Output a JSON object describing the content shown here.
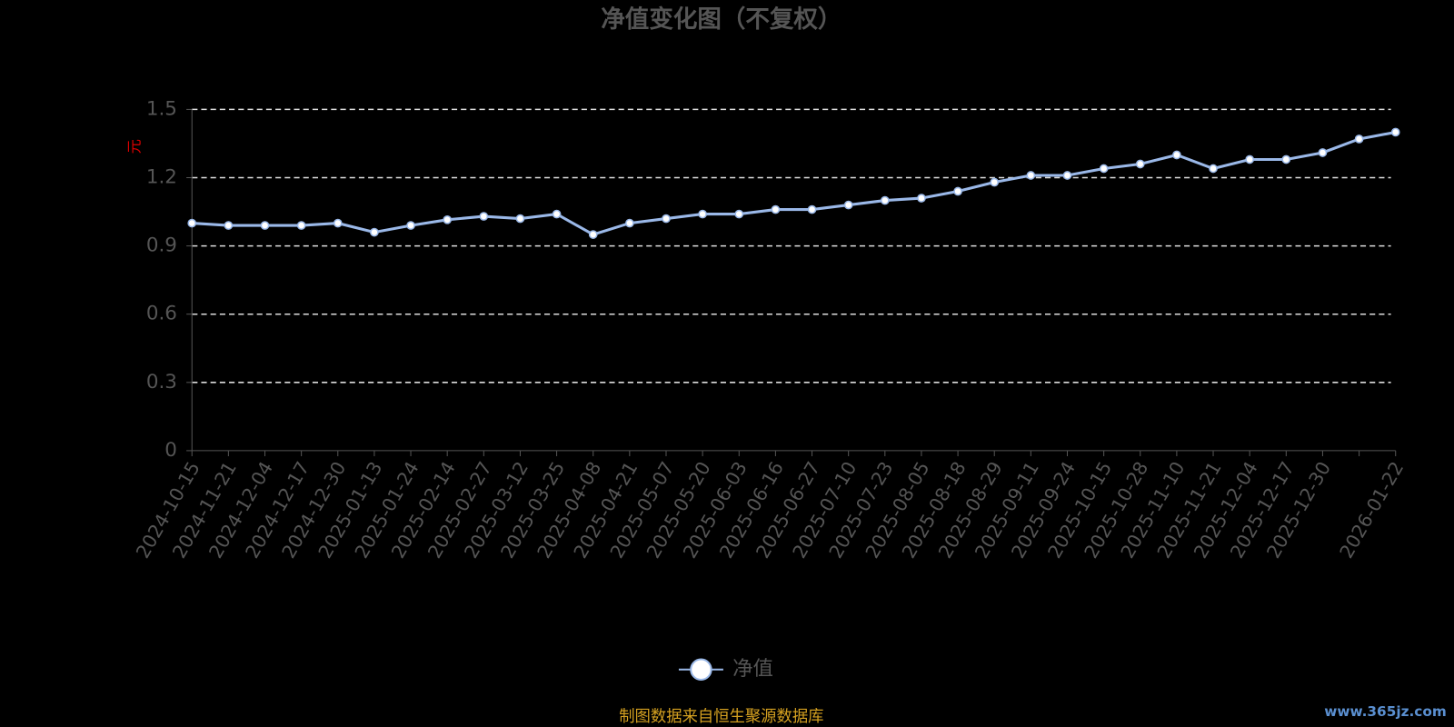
{
  "chart_data": {
    "type": "line",
    "title": "净值变化图（不复权）",
    "y_label": "元",
    "categories": [
      "2024-10-15",
      "2024-11-21",
      "2024-12-04",
      "2024-12-17",
      "2024-12-30",
      "2025-01-13",
      "2025-01-24",
      "2025-02-14",
      "2025-02-27",
      "2025-03-12",
      "2025-03-25",
      "2025-04-08",
      "2025-04-21",
      "2025-05-07",
      "2025-05-20",
      "2025-06-03",
      "2025-06-16",
      "2025-06-27",
      "2025-07-10",
      "2025-07-23",
      "2025-08-05",
      "2025-08-18",
      "2025-08-29",
      "2025-09-11",
      "2025-09-24",
      "2025-10-15",
      "2025-10-28",
      "2025-11-10",
      "2025-11-21",
      "2025-12-04",
      "2025-12-17",
      "2025-12-30",
      null,
      "2026-01-22"
    ],
    "series": [
      {
        "name": "净值",
        "color": "#9ab8e8",
        "values": [
          1.0,
          0.99,
          0.99,
          0.99,
          1.0,
          0.96,
          0.99,
          1.015,
          1.03,
          1.02,
          1.04,
          0.95,
          1.0,
          1.02,
          1.04,
          1.04,
          1.06,
          1.06,
          1.08,
          1.1,
          1.11,
          1.14,
          1.18,
          1.21,
          1.21,
          1.24,
          1.26,
          1.3,
          1.24,
          1.28,
          1.28,
          1.31,
          1.37,
          1.4
        ]
      }
    ],
    "ylim": [
      0,
      1.5
    ],
    "yticks": [
      0,
      0.3,
      0.6,
      0.9,
      1.2,
      1.5
    ],
    "grid": true,
    "legend": "bottom",
    "footer": "制图数据来自恒生聚源数据库",
    "watermark": "www.365jz.com"
  }
}
